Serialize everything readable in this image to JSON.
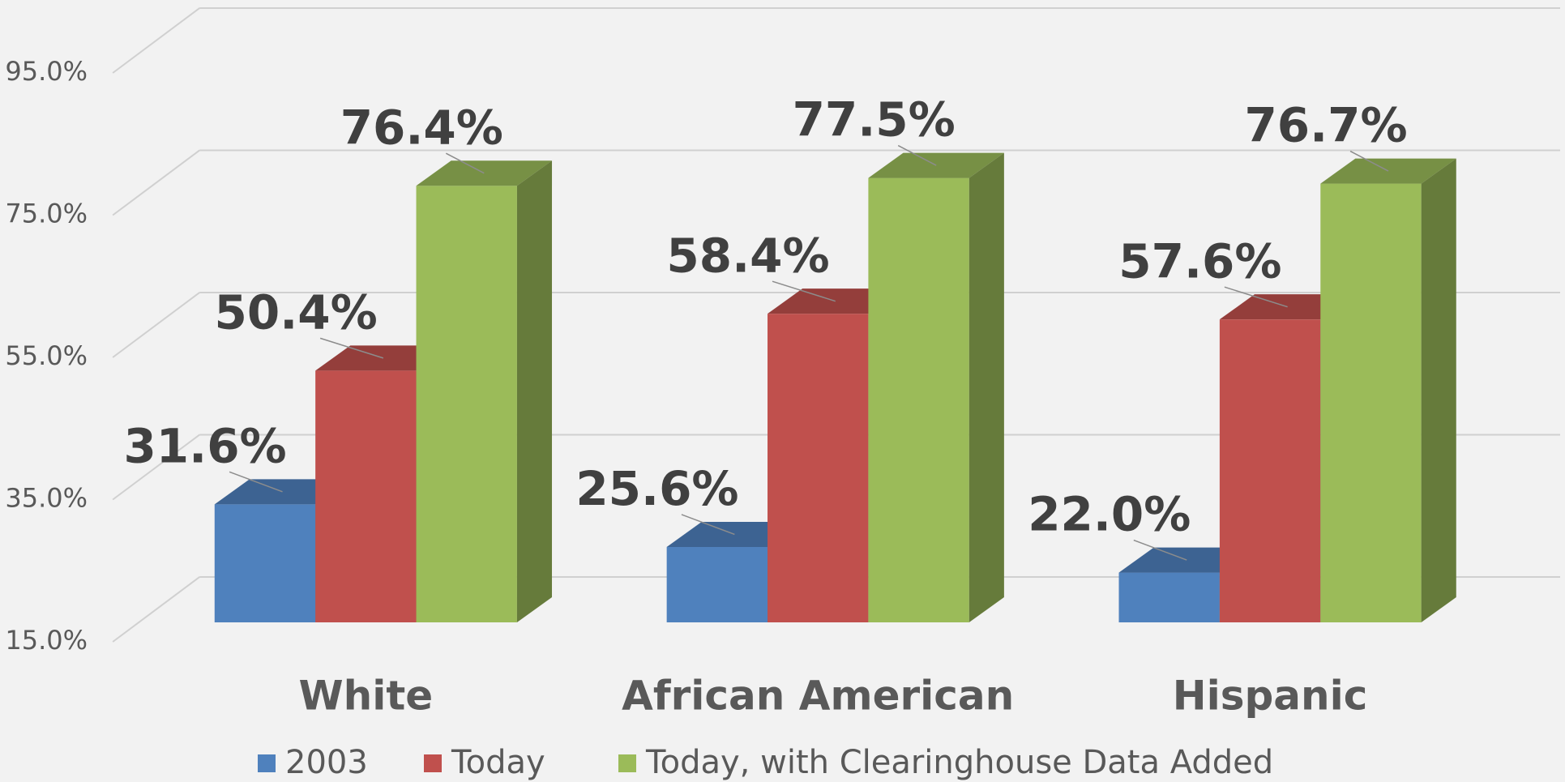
{
  "chart_data": {
    "type": "bar3d",
    "categories": [
      "White",
      "African American",
      "Hispanic"
    ],
    "series": [
      {
        "name": "2003",
        "color": "#4f81bd",
        "values": [
          31.6,
          25.6,
          22.0
        ],
        "value_labels": [
          "31.6%",
          "25.6%",
          "22.0%"
        ]
      },
      {
        "name": "Today",
        "color": "#c0504d",
        "values": [
          50.4,
          58.4,
          57.6
        ],
        "value_labels": [
          "50.4%",
          "58.4%",
          "57.6%"
        ]
      },
      {
        "name": "Today, with Clearinghouse Data Added",
        "color": "#9bbb59",
        "values": [
          76.4,
          77.5,
          76.7
        ],
        "value_labels": [
          "76.4%",
          "77.5%",
          "76.7%"
        ]
      }
    ],
    "ylim": [
      15,
      95
    ],
    "yticks": [
      {
        "value": 15,
        "label": "15.0%"
      },
      {
        "value": 35,
        "label": "35.0%"
      },
      {
        "value": 55,
        "label": "55.0%"
      },
      {
        "value": 75,
        "label": "75.0%"
      },
      {
        "value": 95,
        "label": "95.0%"
      }
    ],
    "grid": true,
    "legend": "bottom"
  }
}
